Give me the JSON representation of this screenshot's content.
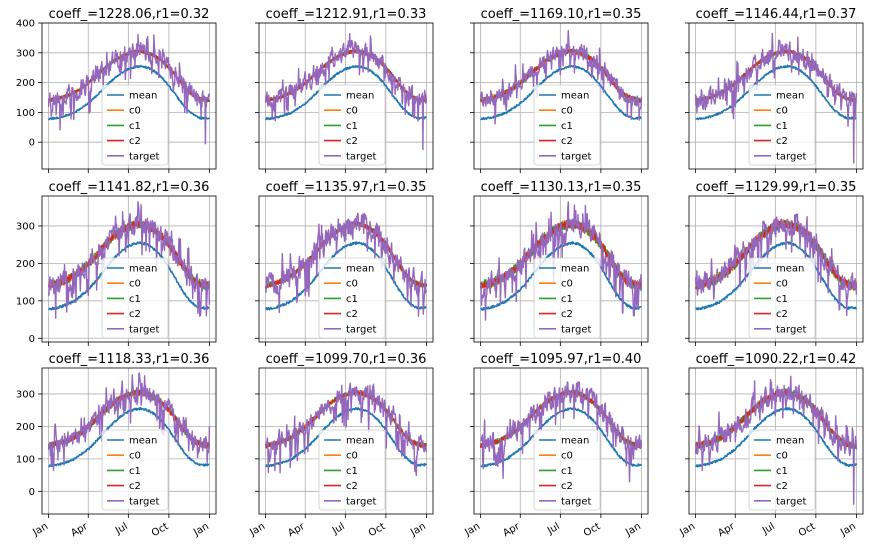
{
  "chart_data": {
    "type": "line",
    "layout": "grid",
    "grid_rows": 3,
    "grid_cols": 4,
    "sharex": true,
    "sharey": "row",
    "grid": true,
    "legend_placement": "lower center",
    "series_names": [
      "mean",
      "c0",
      "c1",
      "c2",
      "target"
    ],
    "series_colors": {
      "mean": "#1f77b4",
      "c0": "#ff7f0e",
      "c1": "#2ca02c",
      "c2": "#d62728",
      "target": "#9467bd"
    },
    "xticks": [
      "Jan",
      "Apr",
      "Jul",
      "Oct",
      "Jan"
    ],
    "xticks_days": [
      0,
      90,
      181,
      273,
      365
    ],
    "xlim": [
      -15,
      380
    ],
    "row_ylims": [
      [
        -90,
        400
      ],
      [
        -10,
        380
      ],
      [
        -70,
        380
      ]
    ],
    "row_yticks": [
      [
        0,
        100,
        200,
        300,
        400
      ],
      [
        0,
        100,
        200,
        300
      ],
      [
        0,
        100,
        200,
        300
      ]
    ],
    "panels": [
      {
        "title": "coeff_=1228.06,r1=0.32",
        "seed": 1,
        "target_amp": 1.0,
        "target_min": -5,
        "c_noise": 6
      },
      {
        "title": "coeff_=1212.91,r1=0.33",
        "seed": 2,
        "target_amp": 1.0,
        "target_min": -25,
        "c_noise": 6
      },
      {
        "title": "coeff_=1169.10,r1=0.35",
        "seed": 3,
        "target_amp": 0.9,
        "target_min": 15,
        "c_noise": 9
      },
      {
        "title": "coeff_=1146.44,r1=0.37",
        "seed": 4,
        "target_amp": 1.0,
        "target_min": -70,
        "c_noise": 6
      },
      {
        "title": "coeff_=1141.82,r1=0.36",
        "seed": 5,
        "target_amp": 0.95,
        "target_min": 10,
        "c_noise": 12
      },
      {
        "title": "coeff_=1135.97,r1=0.35",
        "seed": 6,
        "target_amp": 1.05,
        "target_min": 10,
        "c_noise": 7
      },
      {
        "title": "coeff_=1130.13,r1=0.35",
        "seed": 7,
        "target_amp": 0.9,
        "target_min": 40,
        "c_noise": 13
      },
      {
        "title": "coeff_=1129.99,r1=0.35",
        "seed": 8,
        "target_amp": 0.9,
        "target_min": 45,
        "c_noise": 13
      },
      {
        "title": "coeff_=1118.33,r1=0.36",
        "seed": 9,
        "target_amp": 0.85,
        "target_min": 20,
        "c_noise": 10
      },
      {
        "title": "coeff_=1099.70,r1=0.36",
        "seed": 10,
        "target_amp": 0.85,
        "target_min": 30,
        "c_noise": 8
      },
      {
        "title": "coeff_=1095.97,r1=0.40",
        "seed": 11,
        "target_amp": 1.0,
        "target_min": 10,
        "c_noise": 8
      },
      {
        "title": "coeff_=1090.22,r1=0.42",
        "seed": 12,
        "target_amp": 1.0,
        "target_min": -40,
        "c_noise": 11
      }
    ],
    "mean_curve": {
      "x": [
        0,
        15,
        30,
        45,
        60,
        75,
        90,
        105,
        120,
        135,
        150,
        165,
        180,
        195,
        210,
        225,
        240,
        255,
        270,
        285,
        300,
        315,
        330,
        345,
        365
      ],
      "y": [
        78,
        80,
        85,
        92,
        100,
        115,
        130,
        150,
        172,
        195,
        215,
        232,
        245,
        252,
        255,
        250,
        238,
        220,
        195,
        165,
        135,
        108,
        90,
        80,
        82
      ]
    },
    "c_curve": {
      "x": [
        0,
        15,
        30,
        45,
        60,
        75,
        90,
        105,
        120,
        135,
        150,
        165,
        180,
        195,
        210,
        225,
        240,
        255,
        270,
        285,
        300,
        315,
        330,
        345,
        365
      ],
      "y": [
        140,
        145,
        150,
        158,
        168,
        182,
        198,
        218,
        238,
        258,
        275,
        288,
        298,
        304,
        305,
        300,
        290,
        275,
        255,
        230,
        200,
        175,
        155,
        145,
        140
      ]
    }
  }
}
